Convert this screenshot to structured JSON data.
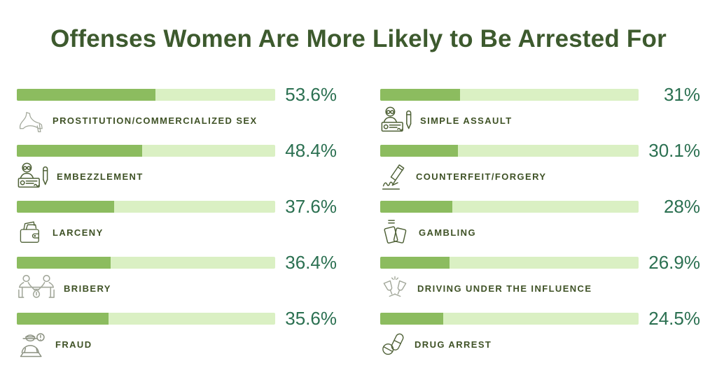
{
  "title": "Offenses Women Are More Likely to Be Arrested For",
  "colors": {
    "title_text": "#3d5a2e",
    "label_text": "#3f5226",
    "value_text": "#2b7051",
    "bar_fill": "#8cbc5f",
    "bar_track": "#daf0c3",
    "background": "#ffffff"
  },
  "chart_data": {
    "type": "bar",
    "orientation": "horizontal",
    "title": "Offenses Women Are More Likely to Be Arrested For",
    "unit": "%",
    "xlim": [
      0,
      100
    ],
    "legend": "none",
    "grid": "off",
    "columns": [
      {
        "items": [
          {
            "label": "PROSTITUTION/COMMERCIALIZED SEX",
            "value": 53.6,
            "value_label": "53.6%",
            "icon": "high-heel-icon"
          },
          {
            "label": "EMBEZZLEMENT",
            "value": 48.4,
            "value_label": "48.4%",
            "icon": "embezzlement-clerk-icon"
          },
          {
            "label": "LARCENY",
            "value": 37.6,
            "value_label": "37.6%",
            "icon": "wallet-cash-icon"
          },
          {
            "label": "BRIBERY",
            "value": 36.4,
            "value_label": "36.4%",
            "icon": "bribery-table-icon"
          },
          {
            "label": "FRAUD",
            "value": 35.6,
            "value_label": "35.6%",
            "icon": "fraudster-laptop-icon"
          }
        ]
      },
      {
        "items": [
          {
            "label": "SIMPLE ASSAULT",
            "value": 31,
            "value_label": "31%",
            "icon": "person-writing-icon"
          },
          {
            "label": "COUNTERFEIT/FORGERY",
            "value": 30.1,
            "value_label": "30.1%",
            "icon": "signature-pen-icon"
          },
          {
            "label": "GAMBLING",
            "value": 28,
            "value_label": "28%",
            "icon": "playing-cards-icon"
          },
          {
            "label": "DRIVING UNDER THE INFLUENCE",
            "value": 26.9,
            "value_label": "26.9%",
            "icon": "champagne-glasses-icon"
          },
          {
            "label": "DRUG ARREST",
            "value": 24.5,
            "value_label": "24.5%",
            "icon": "pills-icon"
          }
        ]
      }
    ]
  }
}
